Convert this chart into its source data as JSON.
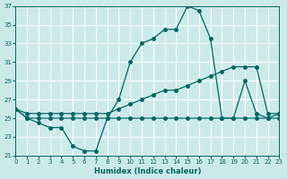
{
  "background_color": "#cce9e9",
  "grid_color": "#ffffff",
  "line_color": "#006666",
  "xlabel": "Humidex (Indice chaleur)",
  "ylim": [
    21,
    37
  ],
  "xlim": [
    0,
    23
  ],
  "yticks": [
    21,
    23,
    25,
    27,
    29,
    31,
    33,
    35,
    37
  ],
  "xticks": [
    0,
    1,
    2,
    3,
    4,
    5,
    6,
    7,
    8,
    9,
    10,
    11,
    12,
    13,
    14,
    15,
    16,
    17,
    18,
    19,
    20,
    21,
    22,
    23
  ],
  "line1_x": [
    0,
    1,
    2,
    3,
    4,
    5,
    6,
    7,
    8,
    9,
    10,
    11,
    12,
    13,
    14,
    15,
    16,
    17,
    18,
    19,
    20,
    21,
    22,
    23
  ],
  "line1_y": [
    26,
    25,
    24.5,
    24,
    24,
    22,
    21.5,
    21.5,
    25,
    27,
    31,
    33,
    33.5,
    34.5,
    34.5,
    37,
    36.5,
    33.5,
    25,
    25,
    29,
    25.5,
    25,
    25.5
  ],
  "line2_x": [
    0,
    1,
    2,
    3,
    4,
    5,
    6,
    7,
    8,
    9,
    10,
    11,
    12,
    13,
    14,
    15,
    16,
    17,
    18,
    19,
    20,
    21,
    22,
    23
  ],
  "line2_y": [
    26,
    25.5,
    25.5,
    25.5,
    25.5,
    25.5,
    25.5,
    25.5,
    25.5,
    26,
    26.5,
    27,
    27.5,
    28,
    28,
    28.5,
    29,
    29.5,
    30,
    30.5,
    30.5,
    30.5,
    25.5,
    25.5
  ],
  "line3_x": [
    0,
    1,
    2,
    3,
    4,
    5,
    6,
    7,
    8,
    9,
    10,
    11,
    12,
    13,
    14,
    15,
    16,
    17,
    18,
    19,
    20,
    21,
    22,
    23
  ],
  "line3_y": [
    26,
    25,
    25,
    25,
    25,
    25,
    25,
    25,
    25,
    25,
    25,
    25,
    25,
    25,
    25,
    25,
    25,
    25,
    25,
    25,
    25,
    25,
    25,
    25
  ]
}
